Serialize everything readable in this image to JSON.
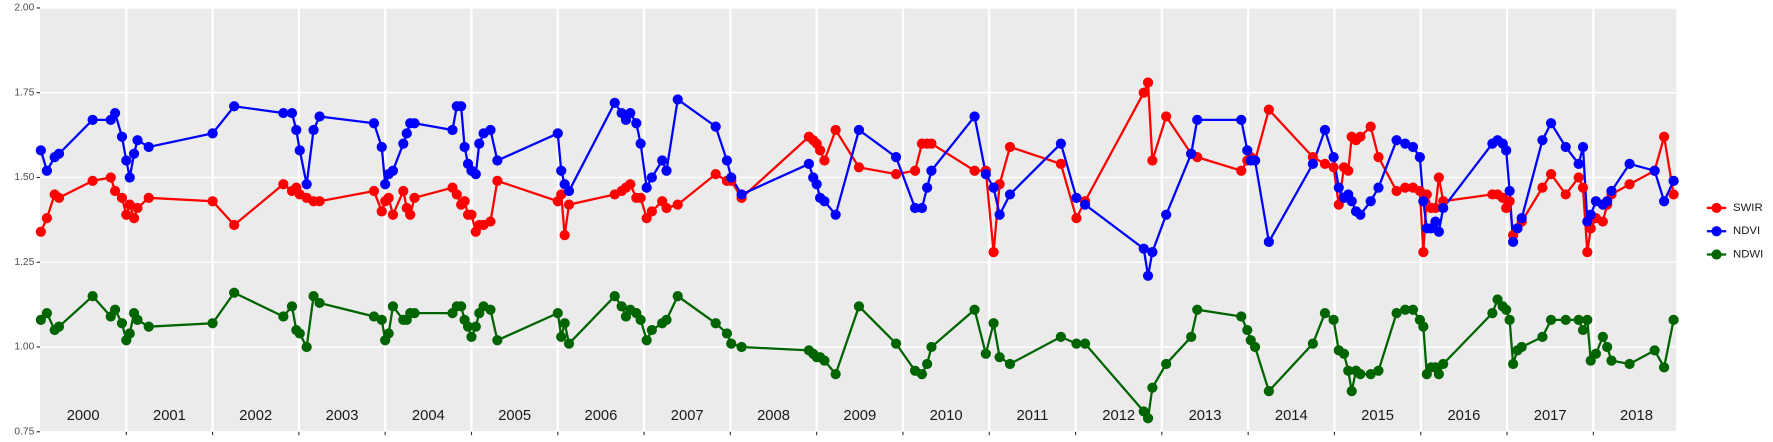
{
  "chart_data": {
    "type": "line",
    "x": [
      2000.01,
      2000.08,
      2000.17,
      2000.22,
      2000.61,
      2000.82,
      2000.87,
      2000.95,
      2001.0,
      2001.04,
      2001.09,
      2001.13,
      2001.26,
      2002.0,
      2002.25,
      2002.82,
      2002.92,
      2002.97,
      2003.01,
      2003.09,
      2003.17,
      2003.24,
      2003.87,
      2003.96,
      2004.0,
      2004.04,
      2004.09,
      2004.21,
      2004.25,
      2004.29,
      2004.34,
      2004.78,
      2004.83,
      2004.88,
      2004.92,
      2004.96,
      2005.0,
      2005.05,
      2005.09,
      2005.14,
      2005.22,
      2005.3,
      2006.0,
      2006.04,
      2006.08,
      2006.13,
      2006.66,
      2006.74,
      2006.79,
      2006.84,
      2006.91,
      2006.96,
      2007.03,
      2007.09,
      2007.21,
      2007.26,
      2007.39,
      2007.83,
      2007.96,
      2008.01,
      2008.13,
      2008.91,
      2008.96,
      2009.0,
      2009.04,
      2009.09,
      2009.22,
      2009.49,
      2009.92,
      2010.14,
      2010.22,
      2010.28,
      2010.33,
      2010.83,
      2010.96,
      2011.05,
      2011.12,
      2011.24,
      2011.83,
      2012.01,
      2012.11,
      2012.79,
      2012.84,
      2012.89,
      2013.05,
      2013.34,
      2013.41,
      2013.92,
      2013.99,
      2014.03,
      2014.08,
      2014.24,
      2014.75,
      2014.89,
      2014.99,
      2015.05,
      2015.11,
      2015.16,
      2015.2,
      2015.25,
      2015.3,
      2015.42,
      2015.51,
      2015.72,
      2015.82,
      2015.91,
      2015.99,
      2016.03,
      2016.07,
      2016.12,
      2016.17,
      2016.21,
      2016.26,
      2016.83,
      2016.89,
      2016.95,
      2016.99,
      2017.03,
      2017.07,
      2017.12,
      2017.17,
      2017.41,
      2017.51,
      2017.68,
      2017.83,
      2017.88,
      2017.93,
      2017.97,
      2018.03,
      2018.11,
      2018.16,
      2018.21,
      2018.42,
      2018.71,
      2018.82,
      2018.93
    ],
    "series": [
      {
        "name": "SWIR",
        "color": "#ff0000",
        "values": [
          1.34,
          1.38,
          1.45,
          1.44,
          1.49,
          1.5,
          1.46,
          1.44,
          1.39,
          1.42,
          1.38,
          1.41,
          1.44,
          1.43,
          1.36,
          1.48,
          1.46,
          1.47,
          1.45,
          1.44,
          1.43,
          1.43,
          1.46,
          1.4,
          1.43,
          1.44,
          1.39,
          1.46,
          1.41,
          1.39,
          1.44,
          1.47,
          1.45,
          1.42,
          1.43,
          1.39,
          1.39,
          1.34,
          1.36,
          1.36,
          1.37,
          1.49,
          1.43,
          1.45,
          1.33,
          1.42,
          1.45,
          1.46,
          1.47,
          1.48,
          1.44,
          1.44,
          1.38,
          1.4,
          1.43,
          1.41,
          1.42,
          1.51,
          1.49,
          1.49,
          1.44,
          1.62,
          1.61,
          1.6,
          1.58,
          1.55,
          1.64,
          1.53,
          1.51,
          1.52,
          1.6,
          1.6,
          1.6,
          1.52,
          1.52,
          1.28,
          1.48,
          1.59,
          1.54,
          1.38,
          1.43,
          1.75,
          1.78,
          1.55,
          1.68,
          1.57,
          1.56,
          1.52,
          1.55,
          1.56,
          1.55,
          1.7,
          1.56,
          1.54,
          1.53,
          1.42,
          1.53,
          1.52,
          1.62,
          1.61,
          1.62,
          1.65,
          1.56,
          1.46,
          1.47,
          1.47,
          1.46,
          1.28,
          1.45,
          1.41,
          1.41,
          1.5,
          1.43,
          1.45,
          1.45,
          1.44,
          1.41,
          1.43,
          1.33,
          1.35,
          1.37,
          1.47,
          1.51,
          1.45,
          1.5,
          1.47,
          1.28,
          1.35,
          1.38,
          1.37,
          1.42,
          1.45,
          1.48,
          1.52,
          1.62,
          1.45
        ]
      },
      {
        "name": "NDVI",
        "color": "#0000ff",
        "values": [
          1.58,
          1.52,
          1.56,
          1.57,
          1.67,
          1.67,
          1.69,
          1.62,
          1.55,
          1.5,
          1.57,
          1.61,
          1.59,
          1.63,
          1.71,
          1.69,
          1.69,
          1.64,
          1.58,
          1.48,
          1.64,
          1.68,
          1.66,
          1.59,
          1.48,
          1.51,
          1.52,
          1.6,
          1.63,
          1.66,
          1.66,
          1.64,
          1.71,
          1.71,
          1.59,
          1.54,
          1.52,
          1.51,
          1.6,
          1.63,
          1.64,
          1.55,
          1.63,
          1.52,
          1.48,
          1.46,
          1.72,
          1.69,
          1.67,
          1.69,
          1.66,
          1.6,
          1.47,
          1.5,
          1.55,
          1.52,
          1.73,
          1.65,
          1.55,
          1.5,
          1.45,
          1.54,
          1.5,
          1.48,
          1.44,
          1.43,
          1.39,
          1.64,
          1.56,
          1.41,
          1.41,
          1.47,
          1.52,
          1.68,
          1.51,
          1.47,
          1.39,
          1.45,
          1.6,
          1.44,
          1.42,
          1.29,
          1.21,
          1.28,
          1.39,
          1.57,
          1.67,
          1.67,
          1.58,
          1.55,
          1.55,
          1.31,
          1.54,
          1.64,
          1.56,
          1.47,
          1.44,
          1.45,
          1.43,
          1.4,
          1.39,
          1.43,
          1.47,
          1.61,
          1.6,
          1.59,
          1.56,
          1.43,
          1.35,
          1.35,
          1.37,
          1.34,
          1.41,
          1.6,
          1.61,
          1.6,
          1.58,
          1.46,
          1.31,
          1.35,
          1.38,
          1.61,
          1.66,
          1.59,
          1.54,
          1.59,
          1.37,
          1.39,
          1.43,
          1.42,
          1.43,
          1.46,
          1.54,
          1.52,
          1.43,
          1.49
        ]
      },
      {
        "name": "NDWI",
        "color": "#006400",
        "values": [
          1.08,
          1.1,
          1.05,
          1.06,
          1.15,
          1.09,
          1.11,
          1.07,
          1.02,
          1.04,
          1.1,
          1.08,
          1.06,
          1.07,
          1.16,
          1.09,
          1.12,
          1.05,
          1.04,
          1.0,
          1.15,
          1.13,
          1.09,
          1.08,
          1.02,
          1.04,
          1.12,
          1.08,
          1.08,
          1.1,
          1.1,
          1.1,
          1.12,
          1.12,
          1.08,
          1.06,
          1.03,
          1.06,
          1.1,
          1.12,
          1.11,
          1.02,
          1.1,
          1.03,
          1.07,
          1.01,
          1.15,
          1.12,
          1.09,
          1.11,
          1.1,
          1.08,
          1.02,
          1.05,
          1.07,
          1.08,
          1.15,
          1.07,
          1.04,
          1.01,
          1.0,
          0.99,
          0.98,
          0.97,
          0.97,
          0.96,
          0.92,
          1.12,
          1.01,
          0.93,
          0.92,
          0.95,
          1.0,
          1.11,
          0.98,
          1.07,
          0.97,
          0.95,
          1.03,
          1.01,
          1.01,
          0.81,
          0.79,
          0.88,
          0.95,
          1.03,
          1.11,
          1.09,
          1.05,
          1.02,
          1.0,
          0.87,
          1.01,
          1.1,
          1.08,
          0.99,
          0.98,
          0.93,
          0.87,
          0.93,
          0.92,
          0.92,
          0.93,
          1.1,
          1.11,
          1.11,
          1.08,
          1.06,
          0.92,
          0.94,
          0.94,
          0.92,
          0.95,
          1.1,
          1.14,
          1.12,
          1.11,
          1.08,
          0.95,
          0.99,
          1.0,
          1.03,
          1.08,
          1.08,
          1.08,
          1.05,
          1.08,
          0.96,
          0.98,
          1.03,
          1.0,
          0.96,
          0.95,
          0.99,
          0.94,
          1.08
        ]
      }
    ],
    "xlim": [
      2000,
      2018.96
    ],
    "xticks": [
      2001,
      2002,
      2003,
      2004,
      2005,
      2006,
      2007,
      2008,
      2009,
      2010,
      2011,
      2012,
      2013,
      2014,
      2015,
      2016,
      2017,
      2018
    ],
    "year_labels": [
      {
        "value": 2000.5,
        "label": "2000"
      },
      {
        "value": 2001.5,
        "label": "2001"
      },
      {
        "value": 2002.5,
        "label": "2002"
      },
      {
        "value": 2003.5,
        "label": "2003"
      },
      {
        "value": 2004.5,
        "label": "2004"
      },
      {
        "value": 2005.5,
        "label": "2005"
      },
      {
        "value": 2006.5,
        "label": "2006"
      },
      {
        "value": 2007.5,
        "label": "2007"
      },
      {
        "value": 2008.5,
        "label": "2008"
      },
      {
        "value": 2009.5,
        "label": "2009"
      },
      {
        "value": 2010.5,
        "label": "2010"
      },
      {
        "value": 2011.5,
        "label": "2011"
      },
      {
        "value": 2012.5,
        "label": "2012"
      },
      {
        "value": 2013.5,
        "label": "2013"
      },
      {
        "value": 2014.5,
        "label": "2014"
      },
      {
        "value": 2015.5,
        "label": "2015"
      },
      {
        "value": 2016.5,
        "label": "2016"
      },
      {
        "value": 2017.5,
        "label": "2017"
      },
      {
        "value": 2018.5,
        "label": "2018"
      }
    ],
    "ylim": [
      0.75,
      2.0
    ],
    "yticks": [
      {
        "value": 0.75,
        "label": "0.75"
      },
      {
        "value": 1,
        "label": "1.00"
      },
      {
        "value": 1.25,
        "label": "1.25"
      },
      {
        "value": 1.5,
        "label": "1.50"
      },
      {
        "value": 1.75,
        "label": "1.75"
      },
      {
        "value": 2,
        "label": "2.00"
      }
    ],
    "grid": true,
    "legend": "right"
  }
}
